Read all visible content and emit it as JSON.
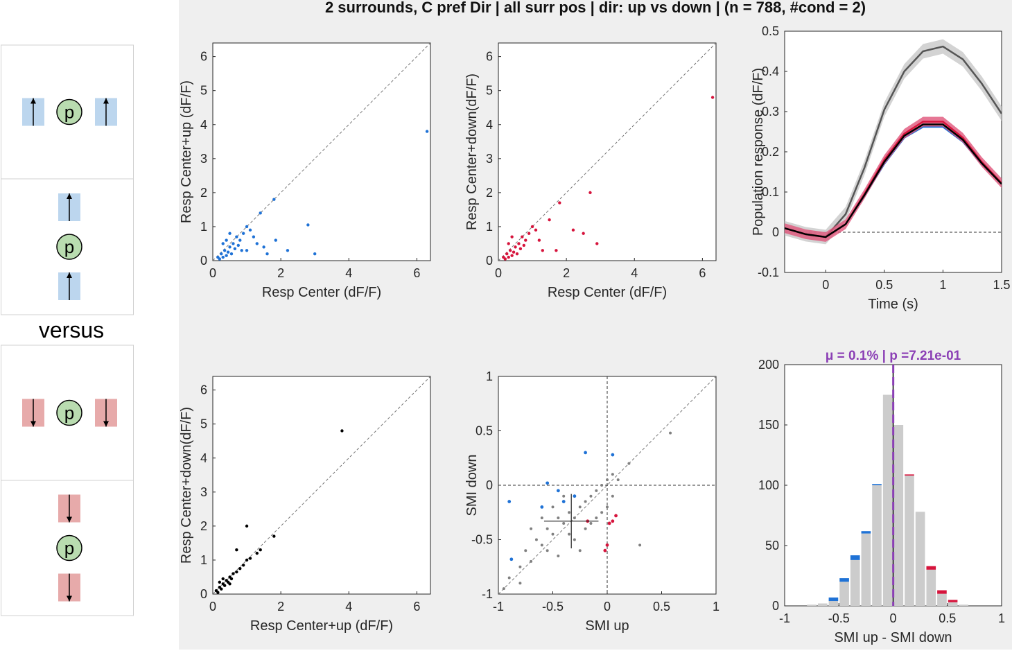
{
  "figure": {
    "title": "2 surrounds, C pref Dir | all surr pos | dir: up vs down | (n = 788, #cond = 2)",
    "versus_label": "versus",
    "center_label": "p",
    "colors": {
      "up": "#1f72d6",
      "down": "#d6143c",
      "both": "#000000",
      "center_fill": "#b9dcb0",
      "up_patch": "#bcd6ee",
      "down_patch": "#e7aaaa",
      "mu_line": "#8b3fb5",
      "grey": "#808080"
    }
  },
  "stimuli": [
    {
      "layout": "horizontal",
      "direction": "up"
    },
    {
      "layout": "vertical",
      "direction": "up"
    },
    {
      "layout": "horizontal",
      "direction": "down"
    },
    {
      "layout": "vertical",
      "direction": "down"
    }
  ],
  "chart_data": [
    {
      "type": "scatter",
      "xlabel": "Resp Center (dF/F)",
      "ylabel": "Resp Center+up (dF/F)",
      "xlim": [
        0,
        6.4
      ],
      "ylim": [
        0,
        6.4
      ],
      "xticks": [
        "0",
        "2",
        "4",
        "6"
      ],
      "yticks": [
        "0",
        "1",
        "2",
        "3",
        "4",
        "5",
        "6"
      ],
      "color": "#1f72d6",
      "diagonal": true,
      "points": [
        [
          0.15,
          0.1
        ],
        [
          0.2,
          0.05
        ],
        [
          0.25,
          0.2
        ],
        [
          0.3,
          0.1
        ],
        [
          0.35,
          0.3
        ],
        [
          0.4,
          0.15
        ],
        [
          0.5,
          0.4
        ],
        [
          0.45,
          0.25
        ],
        [
          0.6,
          0.5
        ],
        [
          0.55,
          0.2
        ],
        [
          0.7,
          0.7
        ],
        [
          0.8,
          0.6
        ],
        [
          0.9,
          0.8
        ],
        [
          1.0,
          1.0
        ],
        [
          1.1,
          0.9
        ],
        [
          1.2,
          0.7
        ],
        [
          0.65,
          0.35
        ],
        [
          0.75,
          0.45
        ],
        [
          0.85,
          0.3
        ],
        [
          1.3,
          0.5
        ],
        [
          1.5,
          0.4
        ],
        [
          1.4,
          1.4
        ],
        [
          1.8,
          1.8
        ],
        [
          1.85,
          0.6
        ],
        [
          2.8,
          1.05
        ],
        [
          3.0,
          0.2
        ],
        [
          2.2,
          0.3
        ],
        [
          1.6,
          0.2
        ],
        [
          1.0,
          0.3
        ],
        [
          0.4,
          0.6
        ],
        [
          0.3,
          0.5
        ],
        [
          0.5,
          0.8
        ],
        [
          6.3,
          3.8
        ]
      ]
    },
    {
      "type": "scatter",
      "xlabel": "Resp Center (dF/F)",
      "ylabel": "Resp Center+down(dF/F)",
      "xlim": [
        0,
        6.4
      ],
      "ylim": [
        0,
        6.4
      ],
      "xticks": [
        "0",
        "2",
        "4",
        "6"
      ],
      "yticks": [
        "0",
        "1",
        "2",
        "3",
        "4",
        "5",
        "6"
      ],
      "color": "#d6143c",
      "diagonal": true,
      "points": [
        [
          0.15,
          0.1
        ],
        [
          0.2,
          0.05
        ],
        [
          0.25,
          0.2
        ],
        [
          0.3,
          0.1
        ],
        [
          0.35,
          0.3
        ],
        [
          0.4,
          0.15
        ],
        [
          0.5,
          0.4
        ],
        [
          0.45,
          0.25
        ],
        [
          0.6,
          0.5
        ],
        [
          0.55,
          0.2
        ],
        [
          0.7,
          0.7
        ],
        [
          0.8,
          0.6
        ],
        [
          0.9,
          0.8
        ],
        [
          1.0,
          1.0
        ],
        [
          1.1,
          0.9
        ],
        [
          1.2,
          0.6
        ],
        [
          0.65,
          0.35
        ],
        [
          0.75,
          0.45
        ],
        [
          1.5,
          1.2
        ],
        [
          1.8,
          1.7
        ],
        [
          2.2,
          0.9
        ],
        [
          2.5,
          0.8
        ],
        [
          2.7,
          2.0
        ],
        [
          2.9,
          0.5
        ],
        [
          1.3,
          0.3
        ],
        [
          1.7,
          0.3
        ],
        [
          0.4,
          0.7
        ],
        [
          0.3,
          0.5
        ],
        [
          6.3,
          4.8
        ]
      ]
    },
    {
      "type": "line",
      "xlabel": "Time (s)",
      "ylabel": "Population response (dF/F)",
      "xlim": [
        -0.35,
        1.5
      ],
      "ylim": [
        -0.1,
        0.5
      ],
      "xticks": [
        "0",
        "0.5",
        "1",
        "1.5"
      ],
      "yticks": [
        "-0.1",
        "0",
        "0.1",
        "0.2",
        "0.3",
        "0.4",
        "0.5"
      ],
      "x": [
        -0.35,
        -0.17,
        0,
        0.17,
        0.33,
        0.5,
        0.67,
        0.83,
        1.0,
        1.17,
        1.33,
        1.5
      ],
      "series": [
        {
          "color": "#555555",
          "values": [
            0.01,
            -0.005,
            -0.012,
            0.045,
            0.16,
            0.305,
            0.4,
            0.45,
            0.462,
            0.43,
            0.37,
            0.295
          ]
        },
        {
          "color": "#1f72d6",
          "values": [
            0.01,
            -0.005,
            -0.012,
            0.02,
            0.09,
            0.17,
            0.235,
            0.262,
            0.262,
            0.225,
            0.17,
            0.12
          ]
        },
        {
          "color": "#d6143c",
          "values": [
            0.01,
            -0.005,
            -0.012,
            0.02,
            0.095,
            0.18,
            0.245,
            0.275,
            0.275,
            0.235,
            0.175,
            0.122
          ]
        },
        {
          "color": "#000000",
          "values": [
            0.01,
            -0.005,
            -0.012,
            0.02,
            0.092,
            0.175,
            0.24,
            0.268,
            0.268,
            0.23,
            0.172,
            0.12
          ]
        }
      ]
    },
    {
      "type": "scatter",
      "xlabel": "Resp Center+up (dF/F)",
      "ylabel": "Resp Center+down(dF/F)",
      "xlim": [
        0,
        6.4
      ],
      "ylim": [
        0,
        6.4
      ],
      "xticks": [
        "0",
        "2",
        "4",
        "6"
      ],
      "yticks": [
        "0",
        "1",
        "2",
        "3",
        "4",
        "5",
        "6"
      ],
      "color": "#000000",
      "diagonal": true,
      "points": [
        [
          0.1,
          0.1
        ],
        [
          0.15,
          0.05
        ],
        [
          0.2,
          0.2
        ],
        [
          0.25,
          0.15
        ],
        [
          0.3,
          0.3
        ],
        [
          0.35,
          0.25
        ],
        [
          0.4,
          0.4
        ],
        [
          0.45,
          0.35
        ],
        [
          0.5,
          0.5
        ],
        [
          0.55,
          0.45
        ],
        [
          0.6,
          0.6
        ],
        [
          0.7,
          0.65
        ],
        [
          0.8,
          0.75
        ],
        [
          0.9,
          0.85
        ],
        [
          1.0,
          1.0
        ],
        [
          1.1,
          1.05
        ],
        [
          1.3,
          1.2
        ],
        [
          1.4,
          1.3
        ],
        [
          1.8,
          1.7
        ],
        [
          1.0,
          2.0
        ],
        [
          0.7,
          1.3
        ],
        [
          0.3,
          0.45
        ],
        [
          0.2,
          0.35
        ],
        [
          0.5,
          0.3
        ],
        [
          3.8,
          4.8
        ]
      ]
    },
    {
      "type": "scatter",
      "xlabel": "SMI up",
      "ylabel": "SMI down",
      "xlim": [
        -1,
        1
      ],
      "ylim": [
        -1,
        1
      ],
      "xticks": [
        "-1",
        "-0.5",
        "0",
        "0.5",
        "1"
      ],
      "yticks": [
        "-1",
        "-0.5",
        "0",
        "0.5",
        "1"
      ],
      "diagonal": true,
      "zero_lines": true,
      "mean_cross": {
        "x": -0.33,
        "y": -0.33,
        "x_sd": 0.25,
        "y_sd": 0.25
      },
      "grey_color": "#808080",
      "grey_points": [
        [
          -0.9,
          -0.85
        ],
        [
          -0.8,
          -0.75
        ],
        [
          -0.75,
          -0.6
        ],
        [
          -0.7,
          -0.7
        ],
        [
          -0.65,
          -0.5
        ],
        [
          -0.6,
          -0.55
        ],
        [
          -0.55,
          -0.4
        ],
        [
          -0.5,
          -0.45
        ],
        [
          -0.45,
          -0.3
        ],
        [
          -0.4,
          -0.35
        ],
        [
          -0.35,
          -0.25
        ],
        [
          -0.3,
          -0.3
        ],
        [
          -0.25,
          -0.2
        ],
        [
          -0.2,
          -0.15
        ],
        [
          -0.15,
          -0.1
        ],
        [
          -0.1,
          -0.05
        ],
        [
          -0.05,
          0.0
        ],
        [
          0.0,
          0.05
        ],
        [
          0.05,
          0.1
        ],
        [
          0.1,
          0.05
        ],
        [
          -0.5,
          -0.2
        ],
        [
          -0.3,
          -0.5
        ],
        [
          -0.2,
          -0.4
        ],
        [
          -0.1,
          -0.3
        ],
        [
          0.0,
          -0.2
        ],
        [
          -0.4,
          -0.1
        ],
        [
          -0.6,
          -0.3
        ],
        [
          -0.7,
          -0.4
        ],
        [
          -0.8,
          -0.9
        ],
        [
          -0.95,
          -0.95
        ],
        [
          0.3,
          -0.55
        ],
        [
          0.58,
          0.48
        ],
        [
          0.2,
          0.2
        ],
        [
          -0.25,
          -0.6
        ],
        [
          -0.45,
          -0.65
        ],
        [
          -0.35,
          -0.45
        ],
        [
          -0.15,
          -0.35
        ],
        [
          0.05,
          -0.1
        ],
        [
          -0.05,
          -0.25
        ],
        [
          -0.55,
          -0.6
        ]
      ],
      "blue_points": [
        [
          -0.2,
          0.3
        ],
        [
          0.05,
          0.28
        ],
        [
          -0.55,
          0.02
        ],
        [
          -0.45,
          -0.05
        ],
        [
          -0.4,
          -0.15
        ],
        [
          -0.3,
          -0.1
        ],
        [
          -0.9,
          -0.15
        ],
        [
          -0.6,
          -0.2
        ],
        [
          -0.88,
          -0.68
        ]
      ],
      "red_points": [
        [
          0.08,
          -0.28
        ],
        [
          0.05,
          -0.33
        ],
        [
          0.02,
          -0.35
        ],
        [
          -0.18,
          -0.33
        ],
        [
          0.0,
          -0.55
        ],
        [
          -0.02,
          -0.6
        ]
      ]
    },
    {
      "type": "bar",
      "xlabel": "SMI up - SMI down",
      "ylabel": "",
      "annotation": "μ = 0.1% | p =7.21e-01",
      "xlim": [
        -1,
        1
      ],
      "ylim": [
        0,
        200
      ],
      "xticks": [
        "-1",
        "-0.5",
        "0",
        "0.5",
        "1"
      ],
      "yticks": [
        "0",
        "50",
        "100",
        "150",
        "200"
      ],
      "bin_edges": [
        -1.0,
        -0.9,
        -0.8,
        -0.7,
        -0.6,
        -0.5,
        -0.4,
        -0.3,
        -0.2,
        -0.1,
        0.0,
        0.1,
        0.2,
        0.3,
        0.4,
        0.5,
        0.6,
        0.7,
        0.8,
        0.9,
        1.0
      ],
      "values": [
        0,
        0,
        1,
        2,
        4,
        20,
        38,
        60,
        100,
        175,
        150,
        108,
        78,
        30,
        10,
        3,
        1,
        0,
        0,
        0
      ],
      "blue_caps": [
        0,
        0,
        0,
        0,
        3,
        3,
        4,
        2,
        1,
        0,
        0,
        0,
        0,
        0,
        0,
        0,
        0,
        0,
        0,
        0
      ],
      "red_caps": [
        0,
        0,
        0,
        0,
        0,
        0,
        0,
        0,
        0,
        0,
        0,
        1,
        0,
        3,
        3,
        2,
        0,
        0,
        0,
        0
      ],
      "mean": 0.001
    }
  ]
}
